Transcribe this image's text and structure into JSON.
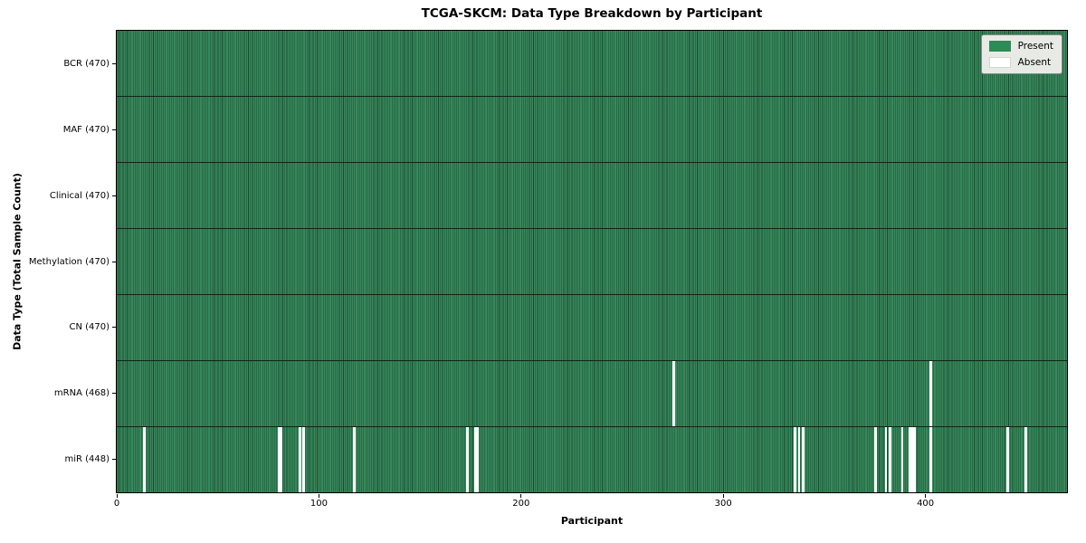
{
  "figure": {
    "title": "TCGA-SKCM: Data Type Breakdown by Participant",
    "xlabel": "Participant",
    "ylabel": "Data Type (Total Sample Count)"
  },
  "legend": {
    "items": [
      {
        "label": "Present",
        "color": "#2e8b57"
      },
      {
        "label": "Absent",
        "color": "#ffffff"
      }
    ]
  },
  "colors": {
    "present_fill": "#37895c",
    "cell_edge": "#1b4a30",
    "row_separator": "#0f2418",
    "absent_fill": "#ffffff",
    "axis": "#000000"
  },
  "chart_data": {
    "type": "heatmap",
    "title": "TCGA-SKCM: Data Type Breakdown by Participant",
    "xlabel": "Participant",
    "ylabel": "Data Type (Total Sample Count)",
    "x_range": [
      0,
      470
    ],
    "x_ticks": [
      0,
      100,
      200,
      300,
      400
    ],
    "legend": [
      "Present",
      "Absent"
    ],
    "legend_position": "upper right",
    "grid": false,
    "rows": [
      {
        "label": "BCR (470)",
        "data_type": "BCR",
        "present_count": 470,
        "absent_participants": []
      },
      {
        "label": "MAF (470)",
        "data_type": "MAF",
        "present_count": 470,
        "absent_participants": []
      },
      {
        "label": "Clinical (470)",
        "data_type": "Clinical",
        "present_count": 470,
        "absent_participants": []
      },
      {
        "label": "Methylation (470)",
        "data_type": "Methylation",
        "present_count": 470,
        "absent_participants": []
      },
      {
        "label": "CN (470)",
        "data_type": "CN",
        "present_count": 470,
        "absent_participants": []
      },
      {
        "label": "mRNA (468)",
        "data_type": "mRNA",
        "present_count": 468,
        "absent_participants": [
          275,
          402
        ]
      },
      {
        "label": "miR (448)",
        "data_type": "miR",
        "present_count": 448,
        "absent_participants": [
          13,
          80,
          81,
          90,
          92,
          117,
          173,
          177,
          178,
          335,
          337,
          339,
          375,
          380,
          382,
          388,
          392,
          393,
          394,
          402,
          440,
          449
        ]
      }
    ]
  }
}
